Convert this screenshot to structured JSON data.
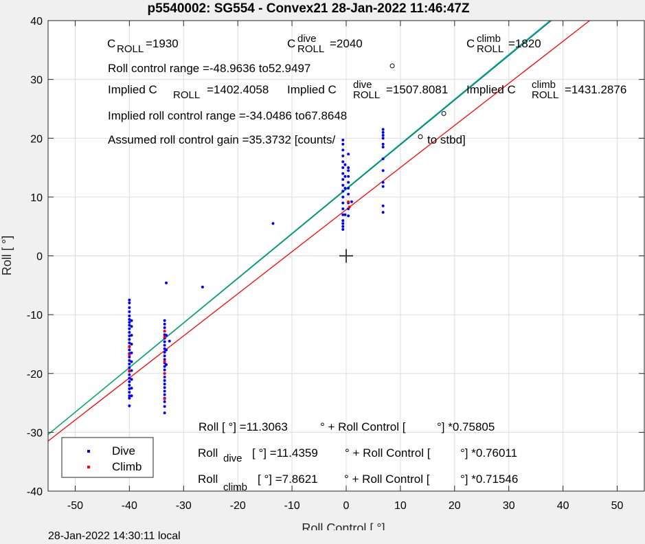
{
  "chart_data": {
    "type": "scatter",
    "title": "p5540002: SG554 - Convex21 28-Jan-2022 11:46:47Z",
    "xlabel": "Roll Control [   °]",
    "ylabel": "Roll [  °]",
    "xlim": [
      -55,
      55
    ],
    "ylim": [
      -40,
      40
    ],
    "xticks": [
      -50,
      -40,
      -30,
      -20,
      -10,
      0,
      10,
      20,
      30,
      40,
      50
    ],
    "yticks": [
      -40,
      -30,
      -20,
      -10,
      0,
      10,
      20,
      30,
      40
    ],
    "xtick_labels": [
      "-50",
      "-40",
      "-30",
      "-20",
      "-10",
      "0",
      "10",
      "20",
      "30",
      "40",
      "50"
    ],
    "ytick_labels": [
      "-40",
      "-30",
      "-20",
      "-10",
      "0",
      "10",
      "20",
      "30",
      "40"
    ],
    "grid": true,
    "legend": {
      "location": "bottom-left",
      "entries": [
        {
          "label": "Dive",
          "color": "#0000ff"
        },
        {
          "label": "Climb",
          "color": "#ff0000"
        }
      ]
    },
    "series": [
      {
        "name": "Dive",
        "color": "#0000ff",
        "marker": "dot",
        "points": [
          [
            -40,
            -7.5
          ],
          [
            -40,
            -8
          ],
          [
            -40,
            -8.8
          ],
          [
            -40,
            -9.5
          ],
          [
            -40,
            -10.2
          ],
          [
            -40,
            -10.8
          ],
          [
            -40,
            -11.3
          ],
          [
            -40,
            -11.8
          ],
          [
            -40,
            -12.4
          ],
          [
            -40,
            -13
          ],
          [
            -40,
            -13.6
          ],
          [
            -40,
            -14.2
          ],
          [
            -40,
            -14.8
          ],
          [
            -40,
            -15.4
          ],
          [
            -40,
            -16
          ],
          [
            -40,
            -16.6
          ],
          [
            -40,
            -17.2
          ],
          [
            -40,
            -17.8
          ],
          [
            -40,
            -18.4
          ],
          [
            -40,
            -19
          ],
          [
            -40,
            -19.6
          ],
          [
            -40,
            -20.2
          ],
          [
            -40,
            -20.8
          ],
          [
            -40,
            -21.4
          ],
          [
            -40,
            -22
          ],
          [
            -40,
            -22.6
          ],
          [
            -40,
            -23.2
          ],
          [
            -40,
            -23.8
          ],
          [
            -40,
            -24.2
          ],
          [
            -40,
            -25.5
          ],
          [
            -39.6,
            -11
          ],
          [
            -39.6,
            -12
          ],
          [
            -39.6,
            -13.5
          ],
          [
            -39.6,
            -15
          ],
          [
            -39.6,
            -16.5
          ],
          [
            -39.6,
            -18
          ],
          [
            -39.6,
            -19.5
          ],
          [
            -39.6,
            -21
          ],
          [
            -39.6,
            -22.5
          ],
          [
            -39.6,
            -23.8
          ],
          [
            -33.5,
            -11
          ],
          [
            -33.5,
            -11.6
          ],
          [
            -33.5,
            -12.2
          ],
          [
            -33.5,
            -12.8
          ],
          [
            -33.5,
            -13.4
          ],
          [
            -33.5,
            -14
          ],
          [
            -33.5,
            -14.6
          ],
          [
            -33.5,
            -15.2
          ],
          [
            -33.5,
            -15.8
          ],
          [
            -33.5,
            -16.4
          ],
          [
            -33.5,
            -17
          ],
          [
            -33.5,
            -17.6
          ],
          [
            -33.5,
            -18.2
          ],
          [
            -33.5,
            -18.8
          ],
          [
            -33.5,
            -19.4
          ],
          [
            -33.5,
            -20
          ],
          [
            -33.5,
            -20.6
          ],
          [
            -33.5,
            -21.2
          ],
          [
            -33.5,
            -21.8
          ],
          [
            -33.5,
            -22.4
          ],
          [
            -33.5,
            -23
          ],
          [
            -33.5,
            -23.6
          ],
          [
            -33.5,
            -24.2
          ],
          [
            -33.5,
            -24.8
          ],
          [
            -33.5,
            -25.6
          ],
          [
            -33.5,
            -26.7
          ],
          [
            -33.2,
            -4.6
          ],
          [
            -33.2,
            -13.5
          ],
          [
            -33.2,
            -16
          ],
          [
            -33.2,
            -18.5
          ],
          [
            -32.6,
            -14.5
          ],
          [
            -26.5,
            -5.3
          ],
          [
            -13.5,
            5.5
          ],
          [
            -0.6,
            4.5
          ],
          [
            -0.6,
            5
          ],
          [
            -0.6,
            5.5
          ],
          [
            -0.6,
            6
          ],
          [
            -0.6,
            7
          ],
          [
            -0.6,
            8
          ],
          [
            -0.6,
            9
          ],
          [
            -0.6,
            10
          ],
          [
            -0.6,
            11
          ],
          [
            -0.6,
            12
          ],
          [
            -0.6,
            13
          ],
          [
            -0.6,
            14
          ],
          [
            -0.6,
            15
          ],
          [
            -0.6,
            16
          ],
          [
            -0.6,
            17
          ],
          [
            -0.6,
            18
          ],
          [
            -0.6,
            19
          ],
          [
            -0.6,
            19.7
          ],
          [
            -0.2,
            7
          ],
          [
            -0.2,
            11.5
          ],
          [
            -0.2,
            13.5
          ],
          [
            -0.2,
            15.5
          ],
          [
            0.4,
            6.8
          ],
          [
            0.4,
            8
          ],
          [
            0.4,
            9
          ],
          [
            0.4,
            10.5
          ],
          [
            0.4,
            11.5
          ],
          [
            0.4,
            12.5
          ],
          [
            0.4,
            13.5
          ],
          [
            0.4,
            14.5
          ],
          [
            0.4,
            15
          ],
          [
            0.4,
            17.3
          ],
          [
            1,
            9.2
          ],
          [
            6.8,
            7.4
          ],
          [
            6.8,
            8.5
          ],
          [
            6.8,
            11.8
          ],
          [
            6.8,
            12.5
          ],
          [
            6.8,
            14.5
          ],
          [
            6.8,
            16.5
          ],
          [
            6.8,
            18.5
          ],
          [
            6.8,
            19
          ],
          [
            6.8,
            20
          ],
          [
            6.8,
            20.5
          ],
          [
            6.8,
            21
          ],
          [
            6.8,
            21.5
          ]
        ]
      },
      {
        "name": "Climb",
        "color": "#ff0000",
        "marker": "dot",
        "points": [
          [
            -40,
            -15.5
          ],
          [
            -40,
            -16.8
          ],
          [
            -40,
            -19.5
          ],
          [
            -33.5,
            -12.8
          ],
          [
            -33.5,
            -13.8
          ],
          [
            -33.5,
            -18
          ],
          [
            -33.5,
            -20
          ],
          [
            -33.5,
            -24.3
          ],
          [
            0.4,
            9.2
          ],
          [
            0.6,
            8.3
          ]
        ]
      },
      {
        "name": "Roll fit",
        "color": "#0072bd",
        "type": "line",
        "intercept": 11.3063,
        "slope": 0.75805
      },
      {
        "name": "Dive fit",
        "color": "#00b050",
        "type": "line",
        "intercept": 11.4359,
        "slope": 0.76011
      },
      {
        "name": "Climb fit",
        "color": "#ff0000",
        "type": "line",
        "intercept": 7.8621,
        "slope": 0.71546
      }
    ],
    "crosshair": [
      0,
      0
    ],
    "circle_markers": [
      [
        8.5,
        32.3
      ],
      [
        18,
        24.2
      ]
    ],
    "annotations": {
      "c_roll": {
        "base": "C",
        "sub": "ROLL",
        "value": "=1930"
      },
      "c_roll_dive": {
        "base": "C",
        "sup": "dive",
        "sub": "ROLL",
        "value": "=2040"
      },
      "c_roll_climb": {
        "base": "C",
        "sup": "climb",
        "sub": "ROLL",
        "value": "=1820"
      },
      "roll_control_range": "Roll control range =-48.9636 to52.9497",
      "implied_c_label": "Implied C",
      "implied_roll_sub": "ROLL",
      "implied_roll_value": "=1402.4058",
      "implied_dive_sup": "dive",
      "implied_dive_value": "=1507.8081",
      "implied_climb_sup": "climb",
      "implied_climb_value": "=1431.2876",
      "implied_range": "Implied roll control range =-34.0486 to67.8648",
      "gain_part1": "Assumed roll control gain =35.3732 [counts/",
      "gain_part2": "to stbd]",
      "fit_roll_part1": "Roll [  °] =11.3063",
      "fit_roll_part2": "° + Roll Control [",
      "fit_roll_part3": "°] *0.75805",
      "fit_dive_base": "Roll",
      "fit_dive_sub": "dive",
      "fit_dive_part1": "[  °] =11.4359",
      "fit_dive_part2": "° + Roll Control [",
      "fit_dive_part3": "°] *0.76011",
      "fit_climb_base": "Roll",
      "fit_climb_sub": "climb",
      "fit_climb_part1": "[  °] =7.8621",
      "fit_climb_part2": "° + Roll Control [",
      "fit_climb_part3": "°] *0.71546"
    }
  },
  "footer": "28-Jan-2022 14:30:11 local"
}
